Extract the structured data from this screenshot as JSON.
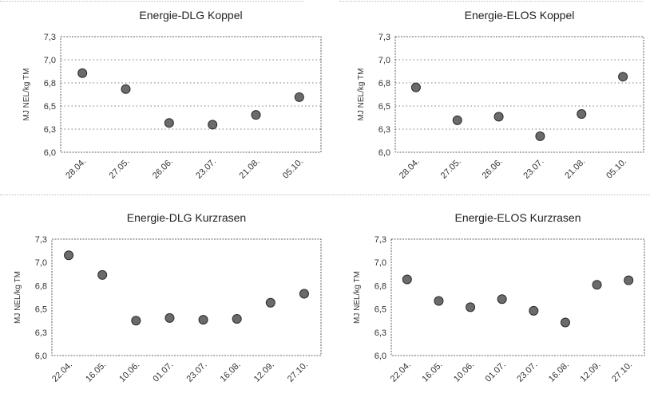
{
  "chart_data": [
    {
      "type": "scatter",
      "title": "Energie-DLG Koppel",
      "ylabel": "MJ NEL/kg TM",
      "ylim": [
        6.0,
        7.3
      ],
      "yticks": [
        "6,0",
        "6,3",
        "6,5",
        "6,8",
        "7,0",
        "7,3"
      ],
      "grid": true,
      "categories": [
        "28.04.",
        "27.05.",
        "26.06.",
        "23.07.",
        "21.08.",
        "05.10."
      ],
      "values": [
        6.89,
        6.71,
        6.33,
        6.31,
        6.42,
        6.62
      ]
    },
    {
      "type": "scatter",
      "title": "Energie-ELOS Koppel",
      "ylabel": "MJ NEL/kg TM",
      "ylim": [
        6.0,
        7.3
      ],
      "yticks": [
        "6,0",
        "6,3",
        "6,5",
        "6,8",
        "7,0",
        "7,3"
      ],
      "grid": true,
      "categories": [
        "28.04.",
        "27.05.",
        "26.06.",
        "23.07.",
        "21.08.",
        "05.10."
      ],
      "values": [
        6.73,
        6.36,
        6.4,
        6.18,
        6.43,
        6.85
      ]
    },
    {
      "type": "scatter",
      "title": "Energie-DLG Kurzrasen",
      "ylabel": "MJ NEL/kg TM",
      "ylim": [
        6.0,
        7.3
      ],
      "yticks": [
        "6,0",
        "6,3",
        "6,5",
        "6,8",
        "7,0",
        "7,3"
      ],
      "grid": false,
      "categories": [
        "22.04.",
        "16.05.",
        "10.06.",
        "01.07.",
        "23.07.",
        "16.08.",
        "12.09.",
        "27.10."
      ],
      "values": [
        7.12,
        6.9,
        6.39,
        6.42,
        6.4,
        6.41,
        6.59,
        6.69
      ]
    },
    {
      "type": "scatter",
      "title": "Energie-ELOS Kurzrasen",
      "ylabel": "MJ NEL/kg TM",
      "ylim": [
        6.0,
        7.3
      ],
      "yticks": [
        "6,0",
        "6,3",
        "6,5",
        "6,8",
        "7,0",
        "7,3"
      ],
      "grid": false,
      "categories": [
        "22.04.",
        "16.05.",
        "10.06.",
        "01.07.",
        "23.07.",
        "16.08.",
        "12.09.",
        "27.10."
      ],
      "values": [
        6.85,
        6.61,
        6.54,
        6.63,
        6.5,
        6.37,
        6.79,
        6.84
      ]
    }
  ]
}
